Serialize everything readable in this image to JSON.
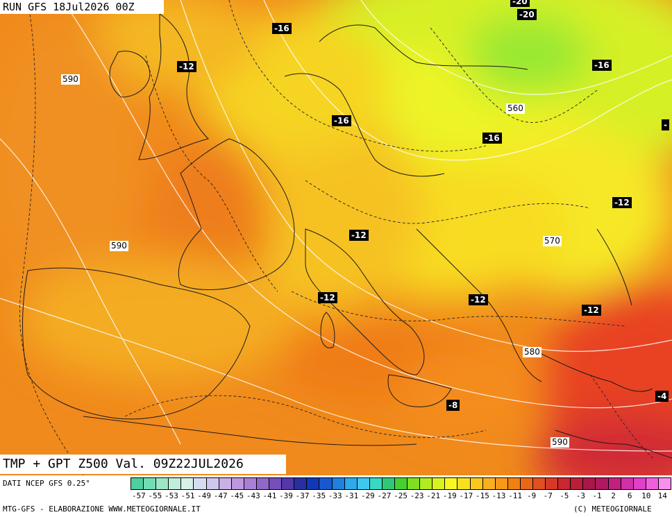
{
  "run_title": "RUN GFS 18Jul2026 00Z",
  "valid_title": "TMP + GPT Z500 Val. 09Z22JUL2026",
  "footer": {
    "data_source": "DATI NCEP GFS 0.25°",
    "producer": "MTG-GFS - ELABORAZIONE WWW.METEOGIORNALE.IT",
    "copyright": "(C) METEOGIORNALE"
  },
  "temperature_labels": [
    "-20",
    "-20",
    "-16",
    "-12",
    "-16",
    "-16",
    "-16",
    "-",
    "-12",
    "-12",
    "-12",
    "-12",
    "-12",
    "-8",
    "-4"
  ],
  "geopotential_labels": [
    "590",
    "560",
    "590",
    "570",
    "580",
    "590"
  ],
  "colorbar": {
    "colors": [
      "#4ecfa0",
      "#74dcb4",
      "#9ee6c6",
      "#c0eeda",
      "#d6f2e8",
      "#d8dcf0",
      "#d0c8ec",
      "#c8b0e6",
      "#bc98de",
      "#a880d4",
      "#9068c8",
      "#7450b8",
      "#5438a8",
      "#2830a0",
      "#1038b8",
      "#1858d0",
      "#2080e0",
      "#30a8ea",
      "#40c8ec",
      "#38d8c4",
      "#30c878",
      "#48d030",
      "#80e020",
      "#b0ec20",
      "#d8f420",
      "#f8f820",
      "#f8e020",
      "#f8c820",
      "#f8b020",
      "#f89818",
      "#f08010",
      "#e86818",
      "#e05020",
      "#d83828",
      "#c82830",
      "#b82038",
      "#a81848",
      "#b01860",
      "#c02080",
      "#d030a8",
      "#e040c8",
      "#f060dc",
      "#f890ec"
    ],
    "tick_labels": [
      "-57",
      "-55",
      "-53",
      "-51",
      "-49",
      "-47",
      "-45",
      "-43",
      "-41",
      "-39",
      "-37",
      "-35",
      "-33",
      "-31",
      "-29",
      "-27",
      "-25",
      "-23",
      "-21",
      "-19",
      "-17",
      "-15",
      "-13",
      "-11",
      "-9",
      "-7",
      "-5",
      "-3",
      "-1",
      "2",
      "6",
      "10",
      "14"
    ]
  }
}
